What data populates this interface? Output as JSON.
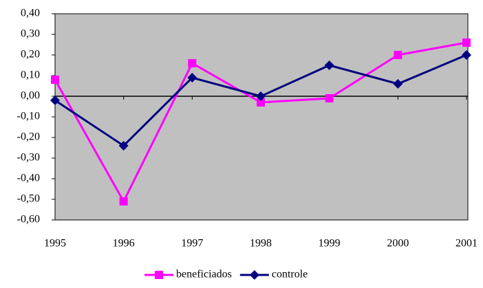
{
  "chart_data": {
    "type": "line",
    "categories": [
      "1995",
      "1996",
      "1997",
      "1998",
      "1999",
      "2000",
      "2001"
    ],
    "series": [
      {
        "name": "beneficiados",
        "color": "#ff00ff",
        "marker": "square",
        "values": [
          0.08,
          -0.51,
          0.16,
          -0.03,
          -0.01,
          0.2,
          0.26
        ]
      },
      {
        "name": "controle",
        "color": "#000080",
        "marker": "diamond",
        "values": [
          -0.02,
          -0.24,
          0.09,
          0.0,
          0.15,
          0.06,
          0.2
        ]
      }
    ],
    "ylim": [
      -0.6,
      0.4
    ],
    "yticks": [
      {
        "value": 0.4,
        "label": "0,40"
      },
      {
        "value": 0.3,
        "label": "0,30"
      },
      {
        "value": 0.2,
        "label": "0,20"
      },
      {
        "value": 0.1,
        "label": "0,10"
      },
      {
        "value": 0,
        "label": "0,00"
      },
      {
        "value": -0.1,
        "label": "-0,10"
      },
      {
        "value": -0.2,
        "label": "-0,20"
      },
      {
        "value": -0.3,
        "label": "-0,30"
      },
      {
        "value": -0.4,
        "label": "-0,40"
      },
      {
        "value": -0.5,
        "label": "-0,50"
      },
      {
        "value": -0.6,
        "label": "-0,60"
      }
    ],
    "plot_background": "#c0c0c0",
    "grid": false,
    "legend": "bottom"
  }
}
